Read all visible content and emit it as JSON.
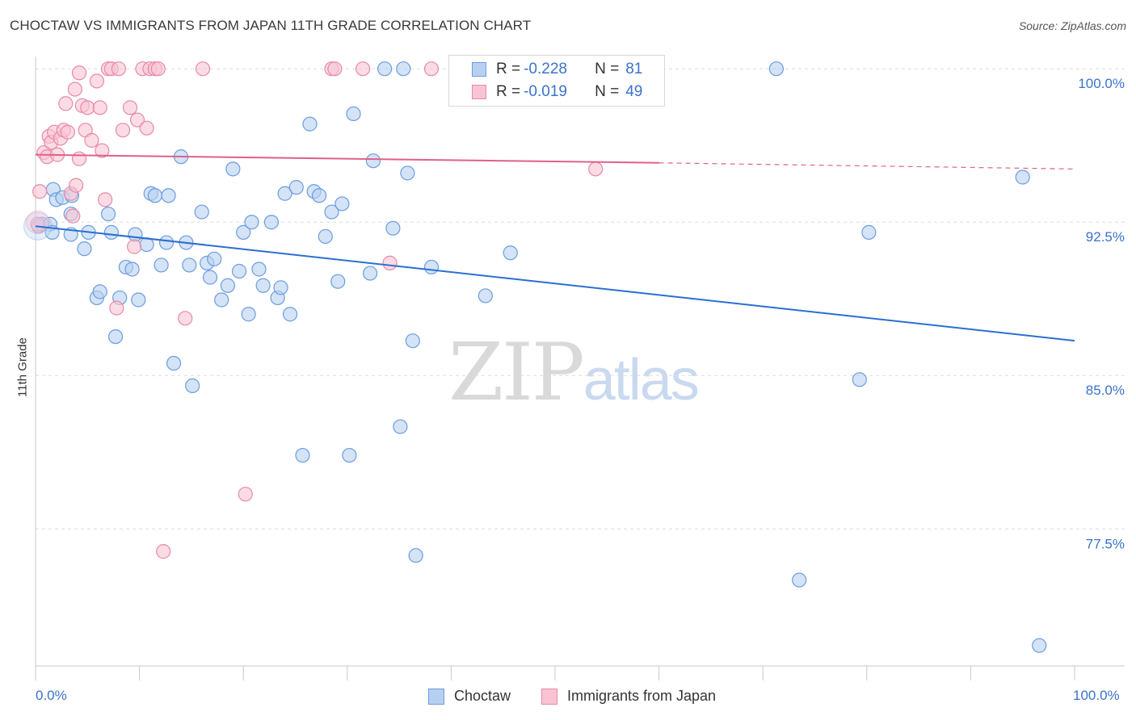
{
  "title": "CHOCTAW VS IMMIGRANTS FROM JAPAN 11TH GRADE CORRELATION CHART",
  "source": "Source: ZipAtlas.com",
  "watermark": {
    "zip": "ZIP",
    "atlas": "atlas"
  },
  "legend": {
    "rows": [
      {
        "r_label": "R = ",
        "r_value": "-0.228",
        "n_label": "N = ",
        "n_value": "81"
      },
      {
        "r_label": "R = ",
        "r_value": "-0.019",
        "n_label": "N = ",
        "n_value": "49"
      }
    ]
  },
  "bottom_legend": {
    "choctaw": "Choctaw",
    "japan": "Immigrants from Japan"
  },
  "x_labels": {
    "left": "0.0%",
    "right": "100.0%"
  },
  "colors": {
    "choctaw_fill": "#b8d0f0",
    "choctaw_stroke": "#6a9de0",
    "choctaw_line": "#2a6fd0",
    "japan_fill": "#f8c4d4",
    "japan_stroke": "#e889a8",
    "japan_line": "#e0608a",
    "tick_label": "#3a72cc",
    "grid": "#dcdcdc"
  },
  "chart_data": {
    "type": "scatter",
    "title": "CHOCTAW VS IMMIGRANTS FROM JAPAN 11TH GRADE CORRELATION CHART",
    "xlabel": "",
    "ylabel": "11th Grade",
    "xlim": [
      0,
      100
    ],
    "ylim": [
      70.8,
      100.6
    ],
    "y_ticks": [
      {
        "value": 100.0,
        "label": "100.0%"
      },
      {
        "value": 92.5,
        "label": "92.5%"
      },
      {
        "value": 85.0,
        "label": "85.0%"
      },
      {
        "value": 77.5,
        "label": "77.5%"
      }
    ],
    "x_ticks": [
      0,
      10,
      20,
      30,
      40,
      50,
      60,
      70,
      80,
      90,
      100
    ],
    "grid": true,
    "series": [
      {
        "name": "Choctaw",
        "r": -0.228,
        "n": 81,
        "trend": {
          "x0": 0,
          "y0": 92.3,
          "x1": 100,
          "y1": 86.7
        },
        "points": [
          [
            0.3,
            92.3
          ],
          [
            0.6,
            92.4
          ],
          [
            1.4,
            92.4
          ],
          [
            1.6,
            92.0
          ],
          [
            1.7,
            94.1
          ],
          [
            2.0,
            93.6
          ],
          [
            2.6,
            93.7
          ],
          [
            3.4,
            92.9
          ],
          [
            3.5,
            93.8
          ],
          [
            3.4,
            91.9
          ],
          [
            4.7,
            91.2
          ],
          [
            5.1,
            92.0
          ],
          [
            5.9,
            88.8
          ],
          [
            6.2,
            89.1
          ],
          [
            7.0,
            92.9
          ],
          [
            7.3,
            92.0
          ],
          [
            7.7,
            86.9
          ],
          [
            8.1,
            88.8
          ],
          [
            8.7,
            90.3
          ],
          [
            9.3,
            90.2
          ],
          [
            9.6,
            91.9
          ],
          [
            9.9,
            88.7
          ],
          [
            10.7,
            91.4
          ],
          [
            11.1,
            93.9
          ],
          [
            11.5,
            93.8
          ],
          [
            12.1,
            90.4
          ],
          [
            12.6,
            91.5
          ],
          [
            12.8,
            93.8
          ],
          [
            13.3,
            85.6
          ],
          [
            14.0,
            95.7
          ],
          [
            14.5,
            91.5
          ],
          [
            14.8,
            90.4
          ],
          [
            15.1,
            84.5
          ],
          [
            16.0,
            93.0
          ],
          [
            16.5,
            90.5
          ],
          [
            16.8,
            89.8
          ],
          [
            17.2,
            90.7
          ],
          [
            17.9,
            88.7
          ],
          [
            18.5,
            89.4
          ],
          [
            19.0,
            95.1
          ],
          [
            19.6,
            90.1
          ],
          [
            20.0,
            92.0
          ],
          [
            20.5,
            88.0
          ],
          [
            20.8,
            92.5
          ],
          [
            21.5,
            90.2
          ],
          [
            21.9,
            89.4
          ],
          [
            22.7,
            92.5
          ],
          [
            23.3,
            88.8
          ],
          [
            23.6,
            89.3
          ],
          [
            24.0,
            93.9
          ],
          [
            24.5,
            88.0
          ],
          [
            25.1,
            94.2
          ],
          [
            25.7,
            81.1
          ],
          [
            26.4,
            97.3
          ],
          [
            26.8,
            94.0
          ],
          [
            27.3,
            93.8
          ],
          [
            27.9,
            91.8
          ],
          [
            28.5,
            93.0
          ],
          [
            29.1,
            89.6
          ],
          [
            29.5,
            93.4
          ],
          [
            30.2,
            81.1
          ],
          [
            30.6,
            97.8
          ],
          [
            32.2,
            90.0
          ],
          [
            32.5,
            95.5
          ],
          [
            33.6,
            100.0
          ],
          [
            34.4,
            92.2
          ],
          [
            35.1,
            82.5
          ],
          [
            35.4,
            100.0
          ],
          [
            35.8,
            94.9
          ],
          [
            36.3,
            86.7
          ],
          [
            36.6,
            76.2
          ],
          [
            38.1,
            90.3
          ],
          [
            43.3,
            88.9
          ],
          [
            45.7,
            91.0
          ],
          [
            73.5,
            75.0
          ],
          [
            79.3,
            84.8
          ],
          [
            80.2,
            92.0
          ],
          [
            95.0,
            94.7
          ],
          [
            96.6,
            71.8
          ],
          [
            71.3,
            100.0
          ]
        ]
      },
      {
        "name": "Immigrants from Japan",
        "r": -0.019,
        "n": 49,
        "trend": {
          "x0": 0,
          "y0": 95.8,
          "x1": 60,
          "y1": 95.4,
          "dash_to_x": 100,
          "dash_to_y": 95.1
        },
        "points": [
          [
            0.2,
            92.4
          ],
          [
            0.4,
            94.0
          ],
          [
            0.8,
            95.9
          ],
          [
            1.1,
            95.7
          ],
          [
            1.3,
            96.7
          ],
          [
            1.5,
            96.4
          ],
          [
            1.8,
            96.9
          ],
          [
            2.1,
            95.8
          ],
          [
            2.4,
            96.6
          ],
          [
            2.7,
            97.0
          ],
          [
            2.9,
            98.3
          ],
          [
            3.1,
            96.9
          ],
          [
            3.4,
            93.9
          ],
          [
            3.6,
            92.8
          ],
          [
            3.9,
            94.3
          ],
          [
            4.2,
            95.6
          ],
          [
            4.5,
            98.2
          ],
          [
            4.8,
            97.0
          ],
          [
            5.0,
            98.1
          ],
          [
            5.4,
            96.5
          ],
          [
            5.9,
            99.4
          ],
          [
            6.2,
            98.1
          ],
          [
            6.4,
            96.0
          ],
          [
            6.7,
            93.6
          ],
          [
            7.0,
            100.0
          ],
          [
            7.3,
            100.0
          ],
          [
            7.8,
            88.3
          ],
          [
            8.0,
            100.0
          ],
          [
            8.4,
            97.0
          ],
          [
            9.1,
            98.1
          ],
          [
            9.5,
            91.3
          ],
          [
            9.8,
            97.5
          ],
          [
            10.3,
            100.0
          ],
          [
            10.7,
            97.1
          ],
          [
            11.0,
            100.0
          ],
          [
            11.5,
            100.0
          ],
          [
            11.8,
            100.0
          ],
          [
            12.3,
            76.4
          ],
          [
            14.4,
            87.8
          ],
          [
            16.1,
            100.0
          ],
          [
            20.2,
            79.2
          ],
          [
            28.5,
            100.0
          ],
          [
            28.8,
            100.0
          ],
          [
            31.5,
            100.0
          ],
          [
            34.1,
            90.5
          ],
          [
            38.1,
            100.0
          ],
          [
            53.9,
            95.1
          ],
          [
            4.2,
            99.8
          ],
          [
            3.8,
            99.0
          ]
        ]
      }
    ]
  }
}
